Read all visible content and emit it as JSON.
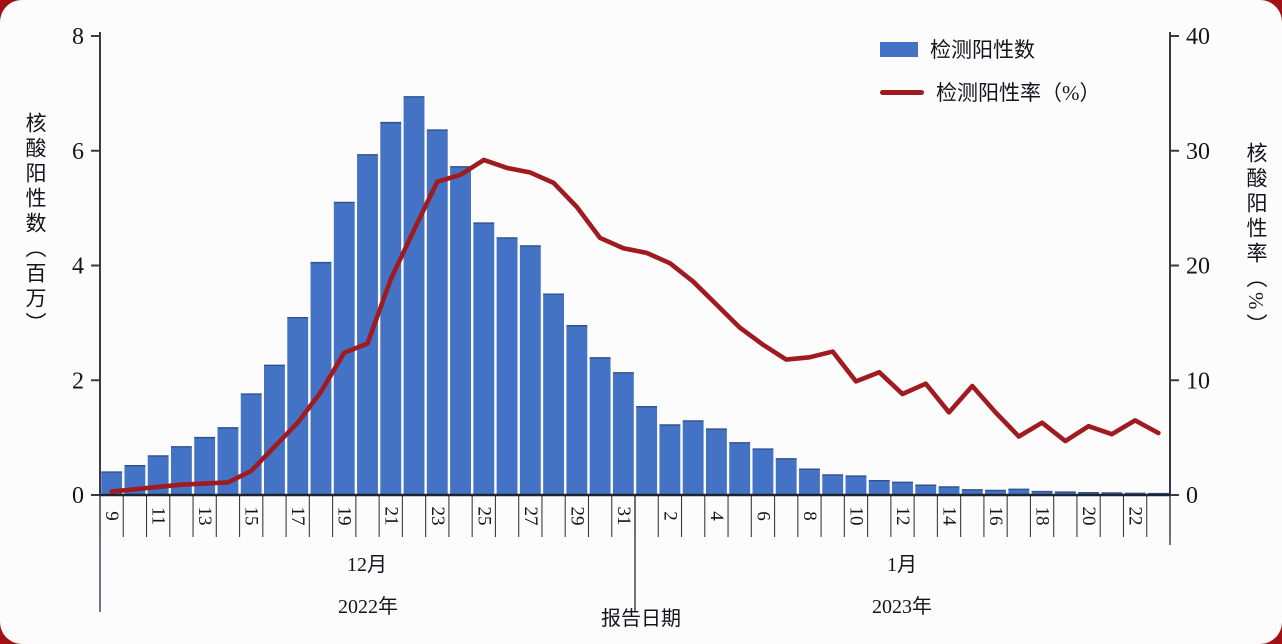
{
  "page": {
    "background_color": "#a21014",
    "card_color": "#fcfcfc"
  },
  "legend": {
    "items": [
      {
        "label": "检测阳性数",
        "type": "bar",
        "color": "#4472c4"
      },
      {
        "label": "检测阳性率（%）",
        "type": "line",
        "color": "#a01b20"
      }
    ]
  },
  "chart_data": {
    "type": "combo",
    "title": "",
    "left_axis": {
      "title": "核酸阳性数（百万）",
      "min": 0,
      "max": 8,
      "ticks": [
        0,
        2,
        4,
        6,
        8
      ]
    },
    "right_axis": {
      "title": "核酸阳性率（%）",
      "min": 0,
      "max": 40,
      "ticks": [
        0,
        10,
        20,
        30,
        40
      ]
    },
    "x_axis": {
      "title": "报告日期",
      "month_groups": [
        {
          "label": "12月",
          "year": "2022年",
          "count": 23
        },
        {
          "label": "1月",
          "year": "2023年",
          "count": 23
        }
      ],
      "tick_labels": [
        "9",
        "",
        "11",
        "",
        "13",
        "",
        "15",
        "",
        "17",
        "",
        "19",
        "",
        "21",
        "",
        "23",
        "",
        "25",
        "",
        "27",
        "",
        "29",
        "",
        "31",
        "",
        "2",
        "",
        "4",
        "",
        "6",
        "",
        "8",
        "",
        "10",
        "",
        "12",
        "",
        "14",
        "",
        "16",
        "",
        "18",
        "",
        "20",
        "",
        "22",
        ""
      ]
    },
    "categories": [
      "12-9",
      "12-10",
      "12-11",
      "12-12",
      "12-13",
      "12-14",
      "12-15",
      "12-16",
      "12-17",
      "12-18",
      "12-19",
      "12-20",
      "12-21",
      "12-22",
      "12-23",
      "12-24",
      "12-25",
      "12-26",
      "12-27",
      "12-28",
      "12-29",
      "12-30",
      "12-31",
      "1-1",
      "1-2",
      "1-3",
      "1-4",
      "1-5",
      "1-6",
      "1-7",
      "1-8",
      "1-9",
      "1-10",
      "1-11",
      "1-12",
      "1-13",
      "1-14",
      "1-15",
      "1-16",
      "1-17",
      "1-18",
      "1-19",
      "1-20",
      "1-21",
      "1-22",
      "1-23"
    ],
    "series": [
      {
        "name": "检测阳性数",
        "type": "bar",
        "yaxis": "left",
        "color": "#4472c4",
        "values": [
          0.4,
          0.51,
          0.68,
          0.84,
          1.0,
          1.17,
          1.76,
          2.26,
          3.09,
          4.05,
          5.1,
          5.93,
          6.49,
          6.94,
          6.36,
          5.72,
          4.74,
          4.48,
          4.34,
          3.5,
          2.95,
          2.39,
          2.13,
          1.54,
          1.22,
          1.29,
          1.15,
          0.91,
          0.8,
          0.63,
          0.45,
          0.35,
          0.33,
          0.25,
          0.22,
          0.17,
          0.14,
          0.09,
          0.08,
          0.1,
          0.06,
          0.05,
          0.04,
          0.035,
          0.03,
          0.025
        ]
      },
      {
        "name": "检测阳性率（%）",
        "type": "line",
        "yaxis": "right",
        "color": "#a01b20",
        "values": [
          0.3,
          0.5,
          0.7,
          0.9,
          1.0,
          1.1,
          2.1,
          4.2,
          6.3,
          9.0,
          12.4,
          13.2,
          18.8,
          23.1,
          27.3,
          27.9,
          29.2,
          28.5,
          28.1,
          27.2,
          25.1,
          22.4,
          21.5,
          21.1,
          20.2,
          18.6,
          16.6,
          14.6,
          13.1,
          11.8,
          12.0,
          12.5,
          9.9,
          10.7,
          8.8,
          9.7,
          7.2,
          9.5,
          7.2,
          5.1,
          6.3,
          4.7,
          6.0,
          5.3,
          6.5,
          5.4
        ]
      }
    ],
    "layout": {
      "grid": false,
      "legend_position": "top-right"
    }
  }
}
